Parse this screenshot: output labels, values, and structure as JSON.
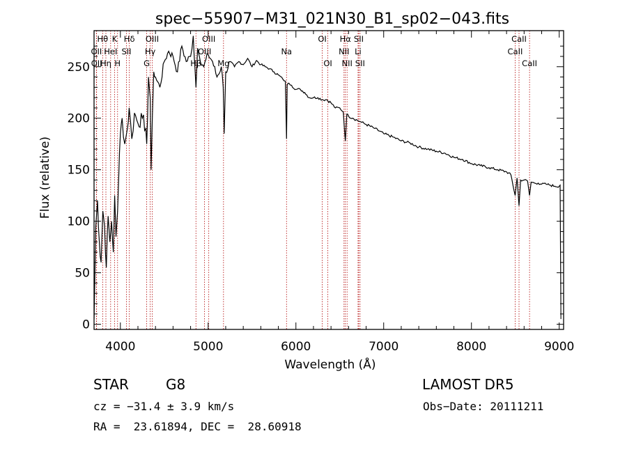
{
  "chart_data": {
    "type": "line",
    "title": "spec−55907−M31_021N30_B1_sp02−043.fits",
    "xlabel": "Wavelength (Å)",
    "ylabel": "Flux (relative)",
    "xlim": [
      3700,
      9050
    ],
    "ylim": [
      -5,
      285
    ],
    "x_ticks": [
      4000,
      5000,
      6000,
      7000,
      8000,
      9000
    ],
    "y_ticks": [
      0,
      50,
      100,
      150,
      200,
      250
    ],
    "grid": false,
    "series": [
      {
        "x": [
          3700,
          3720,
          3740,
          3760,
          3780,
          3800,
          3820,
          3840,
          3860,
          3880,
          3900,
          3920,
          3935,
          3950,
          3968,
          3980,
          4000,
          4020,
          4050,
          4080,
          4100,
          4130,
          4160,
          4200,
          4250,
          4290,
          4300,
          4310,
          4320,
          4340,
          4350,
          4380,
          4400,
          4450,
          4500,
          4550,
          4600,
          4650,
          4700,
          4750,
          4800,
          4830,
          4850,
          4861,
          4880,
          4900,
          4950,
          5000,
          5050,
          5100,
          5150,
          5172,
          5183,
          5200,
          5250,
          5300,
          5350,
          5400,
          5450,
          5500,
          5550,
          5600,
          5650,
          5700,
          5750,
          5800,
          5850,
          5880,
          5893,
          5900,
          5920,
          5950,
          6000,
          6050,
          6100,
          6150,
          6200,
          6250,
          6300,
          6350,
          6400,
          6450,
          6500,
          6540,
          6563,
          6580,
          6600,
          6650,
          6700,
          6750,
          6800,
          6900,
          7000,
          7100,
          7200,
          7300,
          7400,
          7500,
          7600,
          7700,
          7800,
          7900,
          8000,
          8100,
          8200,
          8300,
          8400,
          8450,
          8498,
          8520,
          8542,
          8560,
          8600,
          8640,
          8662,
          8680,
          8720,
          8760,
          8800,
          8850,
          8900,
          8950,
          9000,
          9010,
          9020
        ],
        "y": [
          5,
          95,
          120,
          80,
          60,
          110,
          95,
          55,
          105,
          80,
          100,
          70,
          125,
          85,
          110,
          140,
          185,
          200,
          175,
          190,
          210,
          180,
          205,
          195,
          200,
          190,
          175,
          200,
          240,
          220,
          150,
          245,
          240,
          230,
          255,
          265,
          260,
          245,
          270,
          255,
          260,
          280,
          248,
          230,
          268,
          260,
          250,
          262,
          255,
          240,
          250,
          230,
          185,
          245,
          255,
          250,
          255,
          252,
          258,
          250,
          256,
          252,
          250,
          248,
          245,
          242,
          238,
          236,
          180,
          232,
          234,
          232,
          228,
          228,
          225,
          220,
          220,
          220,
          218,
          218,
          215,
          210,
          210,
          206,
          178,
          204,
          202,
          200,
          198,
          196,
          194,
          190,
          185,
          182,
          178,
          176,
          172,
          170,
          168,
          166,
          162,
          160,
          156,
          154,
          152,
          150,
          148,
          145,
          125,
          142,
          115,
          140,
          140,
          139,
          125,
          138,
          137,
          137,
          136,
          136,
          135,
          134,
          134,
          135,
          5
        ]
      }
    ],
    "spectral_lines": [
      {
        "label": "Hθ",
        "wavelength": 3798,
        "row": 0
      },
      {
        "label": "K",
        "wavelength": 3934,
        "row": 0
      },
      {
        "label": "Hδ",
        "wavelength": 4102,
        "row": 0
      },
      {
        "label": "OIII",
        "wavelength": 4363,
        "row": 0
      },
      {
        "label": "OIII",
        "wavelength": 5007,
        "row": 0
      },
      {
        "label": "OI",
        "wavelength": 6300,
        "row": 0
      },
      {
        "label": "Hα",
        "wavelength": 6563,
        "row": 0
      },
      {
        "label": "SII",
        "wavelength": 6716,
        "row": 0
      },
      {
        "label": "CaII",
        "wavelength": 8542,
        "row": 0
      },
      {
        "label": "OII",
        "wavelength": 3727,
        "row": 1
      },
      {
        "label": "HeI",
        "wavelength": 3889,
        "row": 1
      },
      {
        "label": "SII",
        "wavelength": 4069,
        "row": 1
      },
      {
        "label": "Hγ",
        "wavelength": 4340,
        "row": 1
      },
      {
        "label": "OIII",
        "wavelength": 4959,
        "row": 1
      },
      {
        "label": "Na",
        "wavelength": 5893,
        "row": 1
      },
      {
        "label": "NII",
        "wavelength": 6548,
        "row": 1
      },
      {
        "label": "Li",
        "wavelength": 6708,
        "row": 1
      },
      {
        "label": "CaII",
        "wavelength": 8498,
        "row": 1
      },
      {
        "label": "OII",
        "wavelength": 3729,
        "row": 2
      },
      {
        "label": "Hη",
        "wavelength": 3835,
        "row": 2
      },
      {
        "label": "H",
        "wavelength": 3968,
        "row": 2
      },
      {
        "label": "G",
        "wavelength": 4300,
        "row": 2
      },
      {
        "label": "Hβ",
        "wavelength": 4861,
        "row": 2
      },
      {
        "label": "Mg",
        "wavelength": 5175,
        "row": 2
      },
      {
        "label": "OI",
        "wavelength": 6364,
        "row": 2
      },
      {
        "label": "NII",
        "wavelength": 6583,
        "row": 2
      },
      {
        "label": "SII",
        "wavelength": 6731,
        "row": 2
      },
      {
        "label": "CaII",
        "wavelength": 8662,
        "row": 2
      }
    ],
    "line_marker_color": "#b00000"
  },
  "info": {
    "object_class": "STAR",
    "subclass": "G8",
    "survey": "LAMOST DR5",
    "cz": "cz = −31.4 ± 3.9 km/s",
    "obs_date": "Obs−Date: 20111211",
    "coords": "RA =  23.61894, DEC =  28.60918"
  }
}
